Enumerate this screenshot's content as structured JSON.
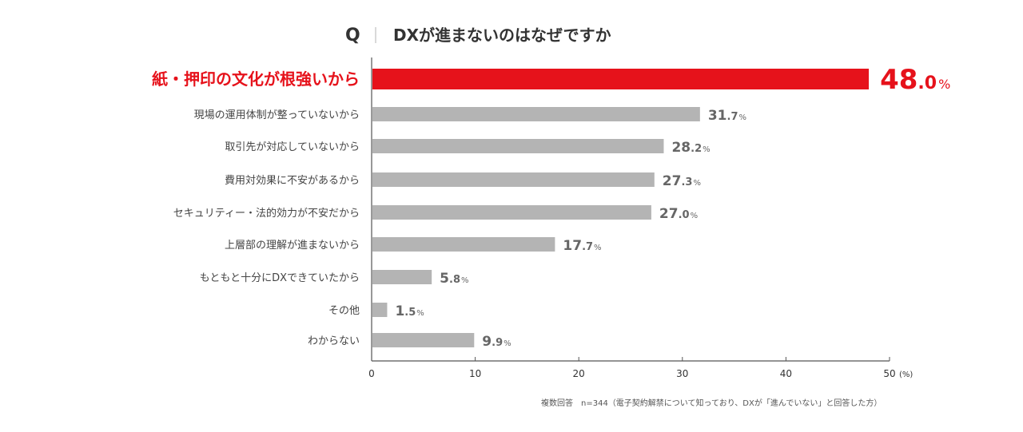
{
  "chart_data": {
    "type": "bar",
    "orientation": "horizontal",
    "question_mark": "Q",
    "title": "DXが進まないのはなぜですか",
    "categories": [
      "紙・押印の文化が根強いから",
      "現場の運用体制が整っていないから",
      "取引先が対応していないから",
      "費用対効果に不安があるから",
      "セキュリティー・法的効力が不安だから",
      "上層部の理解が進まないから",
      "もともと十分にDXできていたから",
      "その他",
      "わからない"
    ],
    "values": [
      48.0,
      31.7,
      28.2,
      27.3,
      27.0,
      17.7,
      5.8,
      1.5,
      9.9
    ],
    "highlight_index": 0,
    "value_suffix": "%",
    "xlim": [
      0,
      50
    ],
    "xticks": [
      "0",
      "10",
      "20",
      "30",
      "40",
      "50"
    ],
    "x_unit": "(%)",
    "note": "複数回答　n=344（電子契約解禁について知っており、DXが「進んでいない」と回答した方）"
  },
  "colors": {
    "highlight": "#e6121b",
    "bar": "#b4b4b4",
    "axis": "#555555",
    "text": "#333333"
  }
}
